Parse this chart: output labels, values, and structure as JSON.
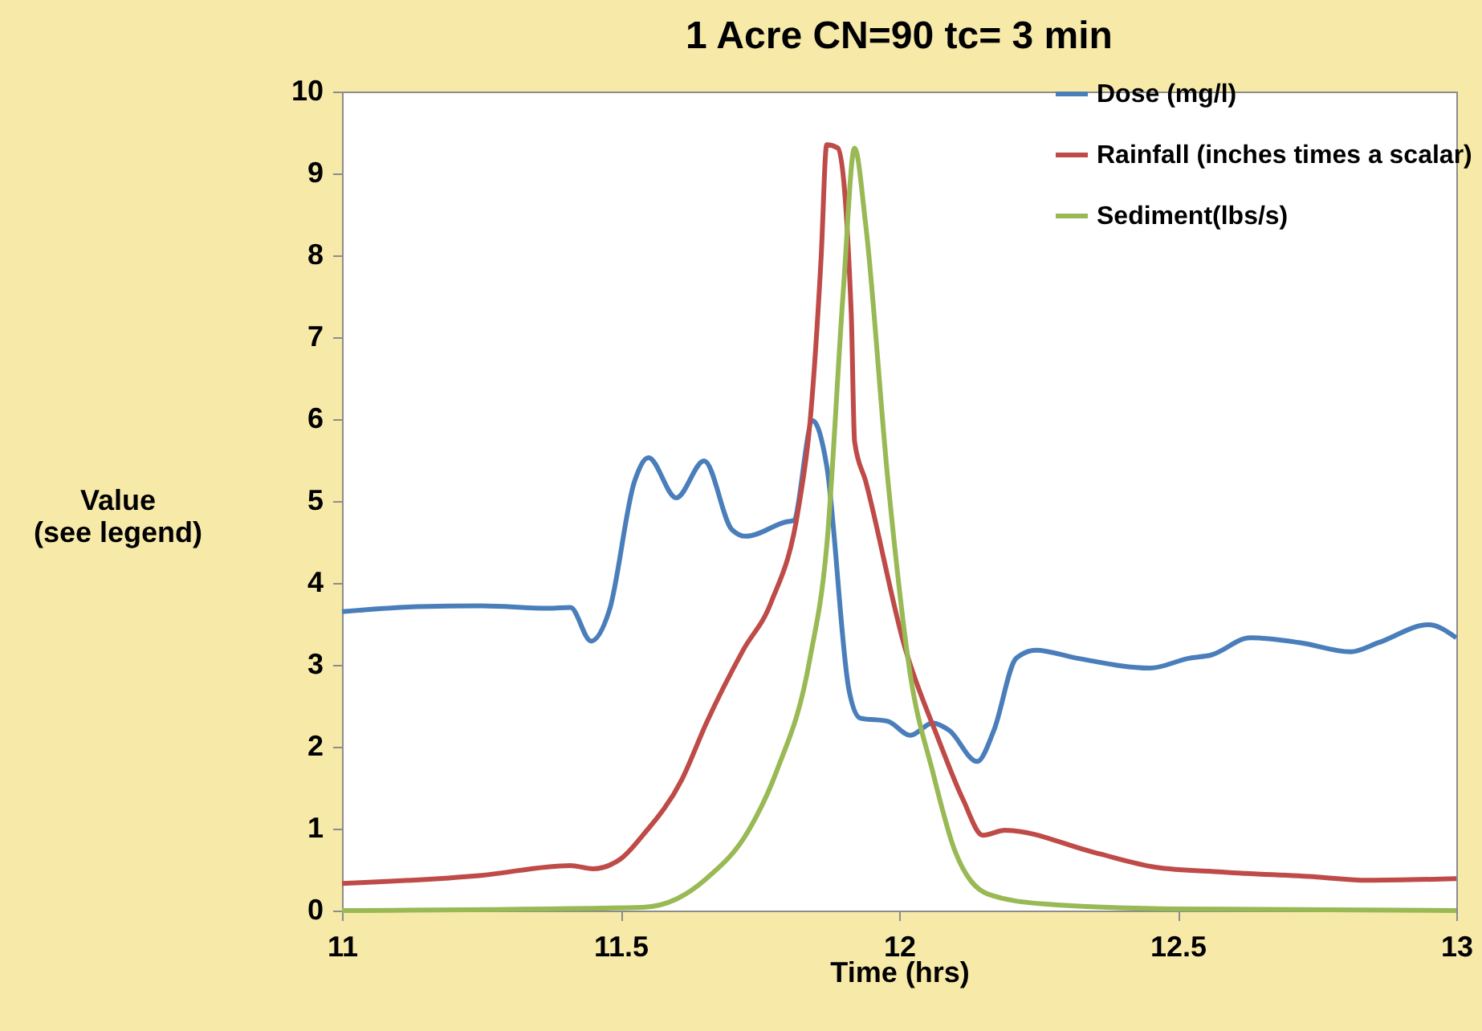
{
  "chart_data": {
    "type": "line",
    "title": "1 Acre CN=90 tc= 3 min",
    "xlabel": "Time (hrs)",
    "ylabel": "Value\n(see legend)",
    "xlim": [
      11,
      13
    ],
    "xticks": [
      11,
      11.5,
      12,
      12.5,
      13
    ],
    "ylim": [
      0,
      10
    ],
    "yticks": [
      0,
      1,
      2,
      3,
      4,
      5,
      6,
      7,
      8,
      9,
      10
    ],
    "grid": false,
    "legend": "top right",
    "line_style": "solid",
    "marker": "none",
    "series": [
      {
        "name": "Dose (mg/l)",
        "color": "#4a7ebb",
        "x": [
          11,
          11.135,
          11.25,
          11.37,
          11.41,
          11.447,
          11.48,
          11.525,
          11.55,
          11.6,
          11.65,
          11.7,
          11.725,
          11.8,
          11.81,
          11.845,
          11.87,
          11.91,
          11.93,
          11.98,
          12.02,
          12.06,
          12.09,
          12.14,
          12.17,
          12.21,
          12.245,
          12.32,
          12.45,
          12.52,
          12.56,
          12.63,
          12.72,
          12.81,
          12.86,
          12.95,
          13
        ],
        "values": [
          3.65,
          3.71,
          3.72,
          3.69,
          3.7,
          3.29,
          3.67,
          5.24,
          5.53,
          5.04,
          5.49,
          4.65,
          4.57,
          4.75,
          4.76,
          5.98,
          5.43,
          2.69,
          2.35,
          2.31,
          2.14,
          2.29,
          2.2,
          1.82,
          2.2,
          3.08,
          3.18,
          3.08,
          2.96,
          3.08,
          3.12,
          3.33,
          3.27,
          3.16,
          3.27,
          3.49,
          3.33
        ]
      },
      {
        "name": "Rainfall (inches times a scalar)",
        "color": "#be4b48",
        "x": [
          11,
          11.25,
          11.41,
          11.45,
          11.5,
          11.54,
          11.61,
          11.654,
          11.72,
          11.77,
          11.82,
          11.84,
          11.86,
          11.87,
          11.89,
          11.914,
          11.92,
          11.94,
          12.01,
          12.07,
          12.115,
          12.15,
          12.19,
          12.35,
          12.46,
          12.58,
          12.75,
          12.84,
          13
        ],
        "values": [
          0.33,
          0.43,
          0.55,
          0.51,
          0.63,
          0.92,
          1.6,
          2.29,
          3.18,
          3.76,
          4.94,
          5.96,
          7.98,
          9.35,
          9.31,
          7.29,
          5.73,
          5.24,
          3.22,
          2.1,
          1.35,
          0.92,
          0.98,
          0.71,
          0.53,
          0.47,
          0.41,
          0.37,
          0.39
        ]
      },
      {
        "name": "Sediment(lbs/s)",
        "color": "#98b954",
        "x": [
          11,
          11.54,
          11.6,
          11.654,
          11.73,
          11.78,
          11.84,
          11.87,
          11.9,
          11.92,
          11.94,
          11.98,
          12.02,
          12.06,
          12.1,
          12.16,
          12.26,
          12.49,
          13
        ],
        "values": [
          0,
          0.04,
          0.14,
          0.39,
          0.98,
          1.7,
          3.08,
          4.45,
          7.59,
          9.31,
          8.37,
          5.24,
          2.88,
          1.7,
          0.73,
          0.2,
          0.08,
          0.02,
          0
        ]
      }
    ]
  }
}
